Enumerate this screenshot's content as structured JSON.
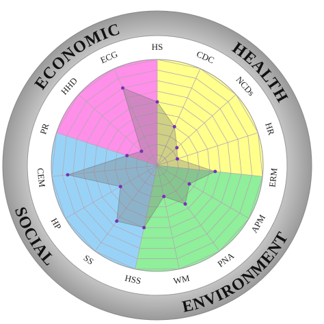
{
  "chart_data": {
    "type": "radar",
    "categories": [
      "HS",
      "CDC",
      "NCDs",
      "HR",
      "ERM",
      "APM",
      "PNA",
      "WM",
      "HSS",
      "SS",
      "HP",
      "CEM",
      "PR",
      "HHD",
      "ECG"
    ],
    "values": [
      6,
      4,
      2.5,
      2,
      5.5,
      3.5,
      4.5,
      3,
      6,
      6.5,
      4,
      8.5,
      3,
      2,
      8
    ],
    "color": "#7a2fb8",
    "ylim": [
      0,
      10
    ],
    "grid": true,
    "groups": [
      {
        "name": "HEALTH",
        "color": "#ffff8c",
        "members": [
          "HS",
          "CDC",
          "NCDs",
          "HR"
        ]
      },
      {
        "name": "ENVIRONMENT",
        "color": "#8fef9a",
        "members": [
          "ERM",
          "APM",
          "PNA",
          "WM"
        ]
      },
      {
        "name": "SOCIAL",
        "color": "#98d3f7",
        "members": [
          "HSS",
          "SS",
          "HP",
          "CEM"
        ]
      },
      {
        "name": "ECONOMIC",
        "color": "#ff8fe8",
        "members": [
          "PR",
          "HHD",
          "ECG"
        ]
      }
    ]
  }
}
